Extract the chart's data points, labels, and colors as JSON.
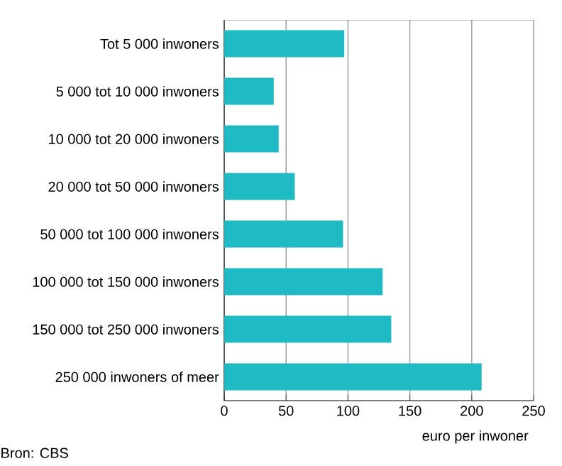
{
  "chart_data": {
    "type": "bar",
    "orientation": "horizontal",
    "categories": [
      "Tot 5 000 inwoners",
      "5 000 tot 10 000 inwoners",
      "10 000 tot 20 000 inwoners",
      "20 000 tot 50 000 inwoners",
      "50 000 tot 100 000 inwoners",
      "100 000 tot 150 000 inwoners",
      "150 000 tot 250 000 inwoners",
      "250 000 inwoners of meer"
    ],
    "values": [
      97,
      40,
      44,
      57,
      96,
      128,
      135,
      208
    ],
    "color": "#1fbac4",
    "xlim": [
      0,
      250
    ],
    "xticks": [
      0,
      50,
      100,
      150,
      200,
      250
    ],
    "xlabel": "euro per inwoner",
    "grid": "x",
    "annotations": [
      "Bron: CBS"
    ]
  }
}
